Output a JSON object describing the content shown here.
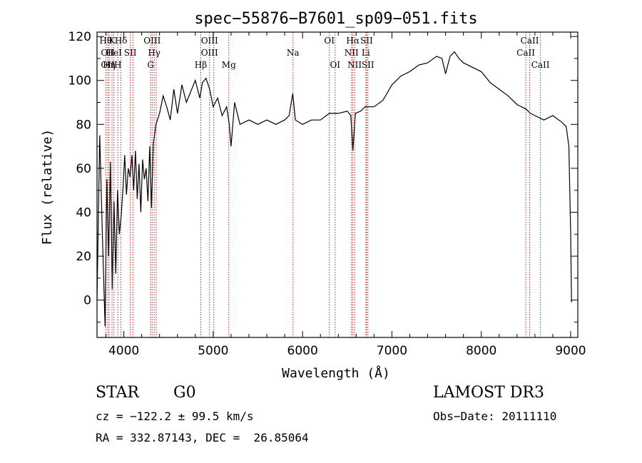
{
  "chart_data": {
    "type": "line",
    "title": "spec−55876−B7601_sp09−051.fits",
    "xlabel": "Wavelength (Å)",
    "ylabel": "Flux (relative)",
    "xlim": [
      3700,
      9080
    ],
    "ylim": [
      -17,
      122
    ],
    "xticks": [
      4000,
      5000,
      6000,
      7000,
      8000,
      9000
    ],
    "yticks": [
      0,
      20,
      40,
      60,
      80,
      100,
      120
    ],
    "series": [
      {
        "name": "flux",
        "x": [
          3700,
          3730,
          3760,
          3790,
          3810,
          3830,
          3850,
          3870,
          3890,
          3910,
          3930,
          3950,
          3970,
          3990,
          4010,
          4030,
          4050,
          4070,
          4090,
          4110,
          4130,
          4150,
          4170,
          4190,
          4210,
          4230,
          4250,
          4270,
          4290,
          4310,
          4330,
          4360,
          4400,
          4440,
          4480,
          4520,
          4560,
          4600,
          4650,
          4700,
          4750,
          4800,
          4850,
          4880,
          4920,
          4960,
          5000,
          5050,
          5100,
          5150,
          5180,
          5200,
          5240,
          5300,
          5400,
          5500,
          5600,
          5700,
          5800,
          5850,
          5890,
          5920,
          6000,
          6100,
          6200,
          6300,
          6400,
          6500,
          6540,
          6563,
          6590,
          6650,
          6700,
          6800,
          6900,
          7000,
          7100,
          7200,
          7300,
          7400,
          7500,
          7560,
          7600,
          7650,
          7700,
          7750,
          7800,
          7900,
          8000,
          8100,
          8200,
          8300,
          8400,
          8500,
          8550,
          8600,
          8700,
          8800,
          8900,
          8950,
          8980,
          9000,
          9010
        ],
        "values": [
          0,
          75,
          30,
          -12,
          55,
          20,
          63,
          5,
          45,
          12,
          50,
          30,
          38,
          50,
          66,
          48,
          60,
          56,
          66,
          50,
          68,
          46,
          62,
          40,
          64,
          55,
          60,
          45,
          70,
          42,
          71,
          80,
          85,
          93,
          88,
          82,
          96,
          85,
          98,
          90,
          95,
          100,
          92,
          99,
          101,
          96,
          88,
          92,
          84,
          88,
          80,
          70,
          90,
          80,
          82,
          80,
          82,
          80,
          82,
          84,
          94,
          82,
          80,
          82,
          82,
          85,
          85,
          86,
          84,
          68,
          85,
          86,
          88,
          88,
          91,
          98,
          102,
          104,
          107,
          108,
          111,
          110,
          103,
          111,
          113,
          110,
          108,
          106,
          104,
          99,
          96,
          93,
          89,
          87,
          85,
          84,
          82,
          84,
          81,
          79,
          70,
          30,
          -1
        ]
      }
    ],
    "lines": [
      {
        "x": 3798,
        "label": "Hθ",
        "row": 1
      },
      {
        "x": 3820,
        "label": "OII",
        "row": 2
      },
      {
        "x": 3820,
        "label": "OII",
        "row": 3
      },
      {
        "x": 3835,
        "label": "Hη",
        "row": 3
      },
      {
        "x": 3868,
        "label": "K",
        "row": 1
      },
      {
        "x": 3889,
        "label": "HeI",
        "row": 2
      },
      {
        "x": 3933,
        "label": "H",
        "row": 3
      },
      {
        "x": 3968,
        "label": "Hδ",
        "row": 1
      },
      {
        "x": 4072,
        "label": "SII",
        "row": 2
      },
      {
        "x": 4102,
        "label": "",
        "row": 0
      },
      {
        "x": 4300,
        "label": "G",
        "row": 3
      },
      {
        "x": 4317,
        "label": "OIII",
        "row": 1
      },
      {
        "x": 4340,
        "label": "Hγ",
        "row": 2
      },
      {
        "x": 4363,
        "label": "",
        "row": 0
      },
      {
        "x": 4861,
        "label": "Hβ",
        "row": 3
      },
      {
        "x": 4959,
        "label": "OIII",
        "row": 1
      },
      {
        "x": 4959,
        "label": "OIII",
        "row": 2
      },
      {
        "x": 5007,
        "label": "",
        "row": 0
      },
      {
        "x": 5175,
        "label": "Mg",
        "row": 3
      },
      {
        "x": 5893,
        "label": "Na",
        "row": 2
      },
      {
        "x": 6300,
        "label": "OI",
        "row": 1
      },
      {
        "x": 6364,
        "label": "OI",
        "row": 3
      },
      {
        "x": 6548,
        "label": "NII",
        "row": 2
      },
      {
        "x": 6563,
        "label": "Hα",
        "row": 1
      },
      {
        "x": 6583,
        "label": "NII",
        "row": 3
      },
      {
        "x": 6708,
        "label": "Li",
        "row": 2
      },
      {
        "x": 6716,
        "label": "SII",
        "row": 1
      },
      {
        "x": 6731,
        "label": "SII",
        "row": 3
      },
      {
        "x": 8498,
        "label": "CaII",
        "row": 2
      },
      {
        "x": 8542,
        "label": "CaII",
        "row": 1
      },
      {
        "x": 8662,
        "label": "CaII",
        "row": 3
      }
    ]
  },
  "info": {
    "object_type": "STAR",
    "subclass": "G0",
    "survey": "LAMOST DR3",
    "cz": "cz = −122.2 ± 99.5 km/s",
    "obs_date": "Obs−Date: 20111110",
    "coords": "RA = 332.87143, DEC =  26.85064"
  }
}
